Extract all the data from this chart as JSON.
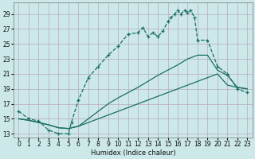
{
  "xlabel": "Humidex (Indice chaleur)",
  "bg_color": "#cce8e8",
  "grid_color": "#b8a8c0",
  "line_color": "#1a6e64",
  "xlim": [
    -0.5,
    23.5
  ],
  "ylim": [
    12.5,
    30.5
  ],
  "xticks": [
    0,
    1,
    2,
    3,
    4,
    5,
    6,
    7,
    8,
    9,
    10,
    11,
    12,
    13,
    14,
    15,
    16,
    17,
    18,
    19,
    20,
    21,
    22,
    23
  ],
  "yticks": [
    13,
    15,
    17,
    19,
    21,
    23,
    25,
    27,
    29
  ],
  "main_x": [
    0,
    1,
    2,
    3,
    4,
    5,
    5.3,
    6,
    7,
    8,
    9,
    10,
    11,
    12,
    12.5,
    13,
    13.5,
    14,
    14.5,
    15,
    15.3,
    15.7,
    16,
    16.3,
    16.7,
    17,
    17.3,
    17.7,
    18,
    19,
    20,
    21,
    22,
    23
  ],
  "main_y": [
    16,
    15,
    14.7,
    13.5,
    13,
    13,
    14.5,
    17.5,
    20.5,
    22,
    23.5,
    24.7,
    26.3,
    26.5,
    27.2,
    26,
    26.5,
    26,
    26.7,
    28,
    28.5,
    29,
    29.5,
    29,
    29.5,
    29.2,
    29.5,
    28.5,
    25.5,
    25.5,
    22,
    21,
    19,
    18.5
  ],
  "upper_x": [
    0,
    1,
    2,
    3,
    4,
    5,
    6,
    7,
    8,
    9,
    10,
    11,
    12,
    13,
    14,
    15,
    16,
    17,
    18,
    19,
    20,
    21,
    22,
    23
  ],
  "upper_y": [
    15,
    14.8,
    14.5,
    14.2,
    13.8,
    13.7,
    14.0,
    15.0,
    16.0,
    17.0,
    17.8,
    18.5,
    19.2,
    20.0,
    20.8,
    21.5,
    22.2,
    23.0,
    23.5,
    23.5,
    21.5,
    20.8,
    19.2,
    19.0
  ],
  "lower_x": [
    0,
    1,
    2,
    3,
    4,
    5,
    6,
    7,
    8,
    9,
    10,
    11,
    12,
    13,
    14,
    15,
    16,
    17,
    18,
    19,
    20,
    21,
    22,
    23
  ],
  "lower_y": [
    15,
    14.8,
    14.5,
    14.2,
    13.8,
    13.7,
    14.0,
    14.5,
    15.0,
    15.5,
    16.0,
    16.5,
    17.0,
    17.5,
    18.0,
    18.5,
    19.0,
    19.5,
    20.0,
    20.5,
    21.0,
    19.5,
    19.2,
    19.0
  ]
}
